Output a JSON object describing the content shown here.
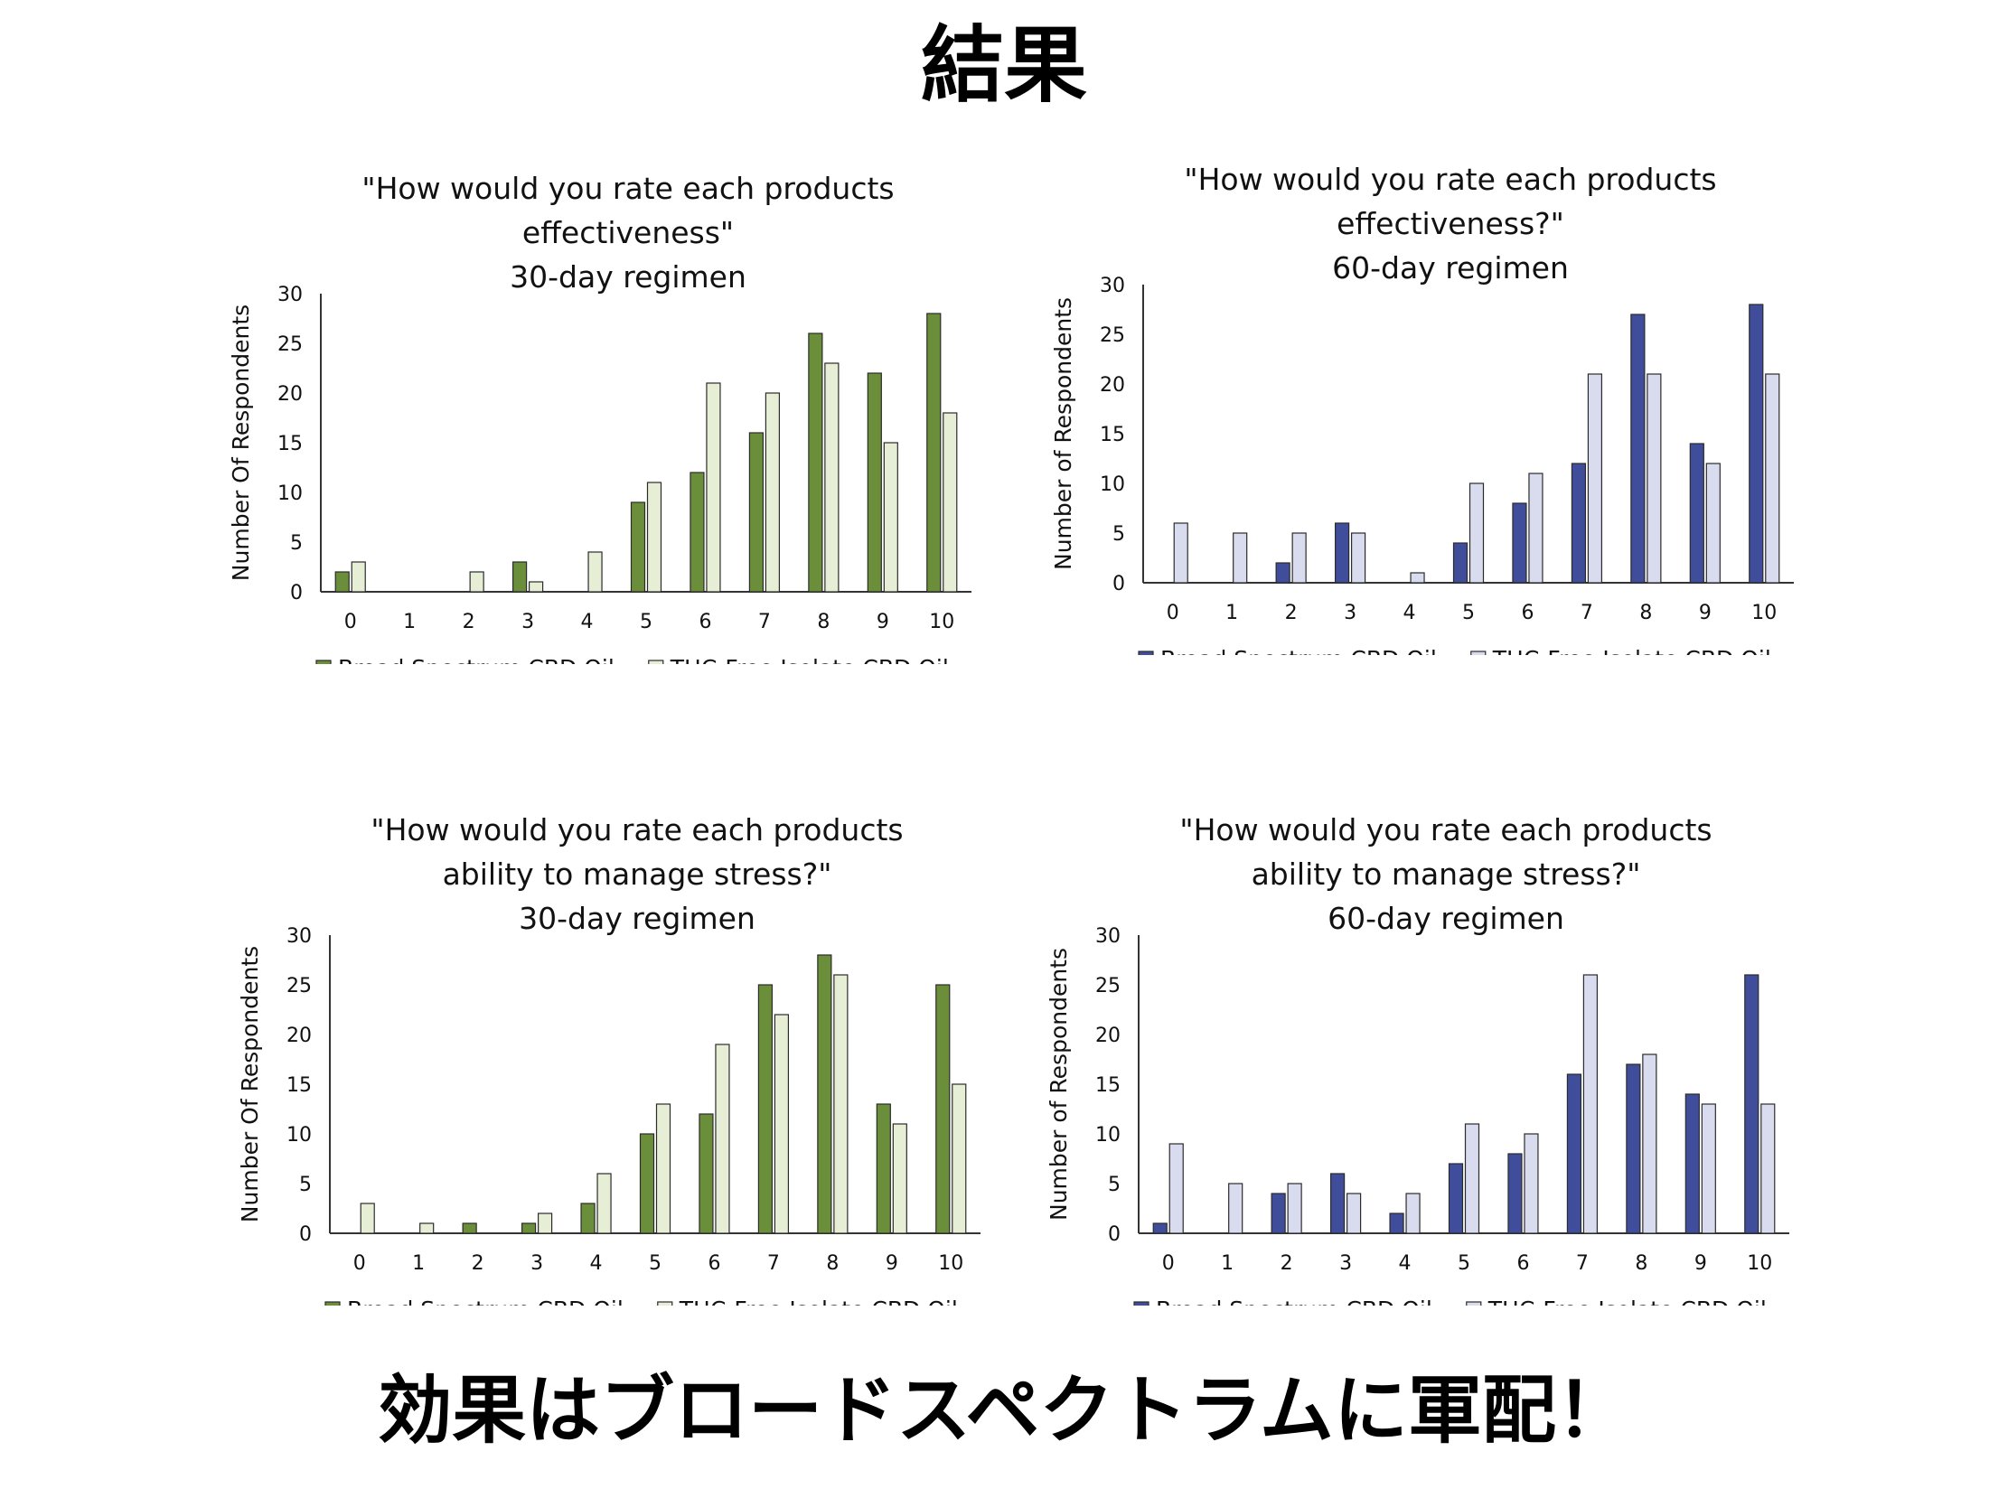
{
  "slide": {
    "title": "結果",
    "caption": "効果はブロードスペクトラムに軍配！"
  },
  "chart_data": [
    {
      "type": "bar",
      "title_lines": [
        "\"How would you rate each products",
        "effectiveness\"",
        "30-day regimen"
      ],
      "ylabel": "Number Of Respondents",
      "xlabel": "",
      "categories": [
        "0",
        "1",
        "2",
        "3",
        "4",
        "5",
        "6",
        "7",
        "8",
        "9",
        "10"
      ],
      "ylim": [
        0,
        30
      ],
      "yticks": [
        "0",
        "5",
        "10",
        "15",
        "20",
        "25",
        "30"
      ],
      "series": [
        {
          "name": "Broad Spectrum CBD Oil",
          "color": "#6b8e3a",
          "values": [
            2,
            0,
            0,
            3,
            0,
            9,
            12,
            16,
            26,
            22,
            28
          ]
        },
        {
          "name": "THC-Free Isolate CBD Oil",
          "color": "#e6efd6",
          "values": [
            3,
            0,
            2,
            1,
            4,
            11,
            21,
            20,
            23,
            15,
            18
          ]
        }
      ],
      "legend": "bottom",
      "grid": false
    },
    {
      "type": "bar",
      "title_lines": [
        "\"How would you rate each products",
        "effectiveness?\"",
        "60-day regimen"
      ],
      "ylabel": "Number of Respondents",
      "xlabel": "",
      "categories": [
        "0",
        "1",
        "2",
        "3",
        "4",
        "5",
        "6",
        "7",
        "8",
        "9",
        "10"
      ],
      "ylim": [
        0,
        30
      ],
      "yticks": [
        "0",
        "5",
        "10",
        "15",
        "20",
        "25",
        "30"
      ],
      "series": [
        {
          "name": "Broad Spectrum CBD Oil",
          "color": "#3f4d9a",
          "values": [
            0,
            0,
            2,
            6,
            0,
            4,
            8,
            12,
            27,
            14,
            28
          ]
        },
        {
          "name": "THC-Free Isolate CBD Oil",
          "color": "#d9dcef",
          "values": [
            6,
            5,
            5,
            5,
            1,
            10,
            11,
            21,
            21,
            12,
            21
          ]
        }
      ],
      "legend": "bottom",
      "grid": false
    },
    {
      "type": "bar",
      "title_lines": [
        "\"How would you rate each products",
        "ability to manage stress?\"",
        "30-day regimen"
      ],
      "ylabel": "Number Of Respondents",
      "xlabel": "",
      "categories": [
        "0",
        "1",
        "2",
        "3",
        "4",
        "5",
        "6",
        "7",
        "8",
        "9",
        "10"
      ],
      "ylim": [
        0,
        30
      ],
      "yticks": [
        "0",
        "5",
        "10",
        "15",
        "20",
        "25",
        "30"
      ],
      "series": [
        {
          "name": "Broad Spectrum CBD Oil",
          "color": "#6b8e3a",
          "values": [
            0,
            0,
            1,
            1,
            3,
            10,
            12,
            25,
            28,
            13,
            25
          ]
        },
        {
          "name": "THC-Free Isolate CBD Oil",
          "color": "#e6efd6",
          "values": [
            3,
            1,
            0,
            2,
            6,
            13,
            19,
            22,
            26,
            11,
            15
          ]
        }
      ],
      "legend": "bottom",
      "grid": false
    },
    {
      "type": "bar",
      "title_lines": [
        "\"How would you rate each products",
        "ability to manage stress?\"",
        "60-day regimen"
      ],
      "ylabel": "Number of Respondents",
      "xlabel": "",
      "categories": [
        "0",
        "1",
        "2",
        "3",
        "4",
        "5",
        "6",
        "7",
        "8",
        "9",
        "10"
      ],
      "ylim": [
        0,
        30
      ],
      "yticks": [
        "0",
        "5",
        "10",
        "15",
        "20",
        "25",
        "30"
      ],
      "series": [
        {
          "name": "Broad Spectrum CBD Oil",
          "color": "#3f4d9a",
          "values": [
            1,
            0,
            4,
            6,
            2,
            7,
            8,
            16,
            17,
            14,
            26
          ]
        },
        {
          "name": "THC-Free Isolate CBD Oil",
          "color": "#d9dcef",
          "values": [
            9,
            5,
            5,
            4,
            4,
            11,
            10,
            26,
            18,
            13,
            13
          ]
        }
      ],
      "legend": "bottom",
      "grid": false
    }
  ]
}
